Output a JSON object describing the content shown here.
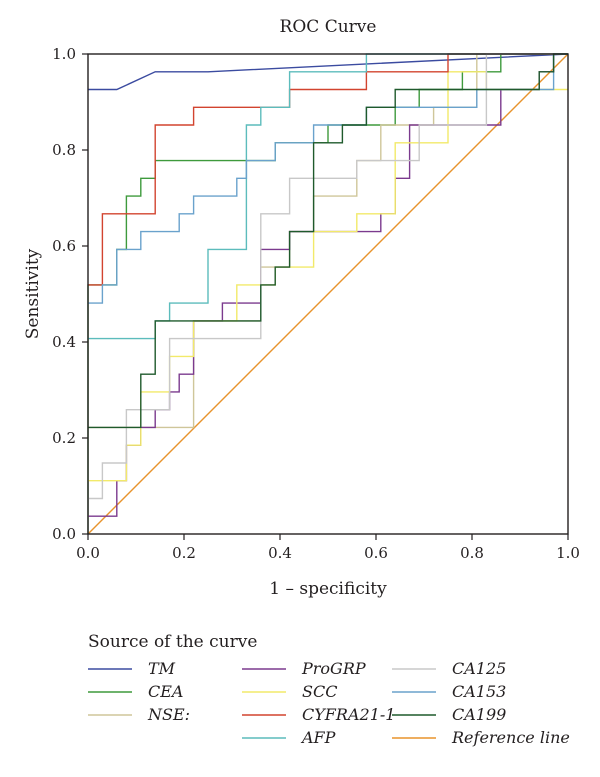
{
  "chart_data": {
    "type": "line",
    "title": "ROC Curve",
    "xlabel": "1 – specificity",
    "ylabel": "Sensitivity",
    "xlim": [
      0,
      1
    ],
    "ylim": [
      0,
      1
    ],
    "xticks": [
      "0.0",
      "0.2",
      "0.4",
      "0.6",
      "0.8",
      "1.0"
    ],
    "yticks": [
      "0.0",
      "0.2",
      "0.4",
      "0.6",
      "0.8",
      "1.0"
    ],
    "grid": false,
    "legend_title": "Source of the curve",
    "legend_position": "bottom",
    "series": [
      {
        "name": "TM",
        "color": "#3b4ba0",
        "x": [
          0,
          0.06,
          0.14,
          0.25,
          1.0
        ],
        "y": [
          0.926,
          0.926,
          0.963,
          0.963,
          1.0
        ]
      },
      {
        "name": "CEA",
        "color": "#3e9a3c",
        "x": [
          0,
          0,
          0.06,
          0.06,
          0.08,
          0.08,
          0.11,
          0.11,
          0.14,
          0.14,
          0.39,
          0.39,
          0.5,
          0.5,
          0.64,
          0.64,
          0.69,
          0.69,
          0.78,
          0.78,
          0.86,
          0.86,
          1.0
        ],
        "y": [
          0,
          0.519,
          0.519,
          0.593,
          0.593,
          0.704,
          0.704,
          0.741,
          0.741,
          0.778,
          0.778,
          0.815,
          0.815,
          0.852,
          0.852,
          0.889,
          0.889,
          0.926,
          0.926,
          0.963,
          0.963,
          1.0,
          1.0
        ]
      },
      {
        "name": "NSE:",
        "color": "#cfc69a",
        "x": [
          0,
          0.22,
          0.22,
          0.36,
          0.36,
          0.42,
          0.42,
          0.47,
          0.47,
          0.56,
          0.56,
          0.61,
          0.61,
          0.72,
          0.72,
          0.81,
          0.81,
          1.0
        ],
        "y": [
          0.222,
          0.222,
          0.444,
          0.444,
          0.556,
          0.556,
          0.63,
          0.63,
          0.704,
          0.704,
          0.778,
          0.778,
          0.852,
          0.852,
          0.889,
          0.889,
          1.0,
          1.0
        ]
      },
      {
        "name": "ProGRP",
        "color": "#7b3a8e",
        "x": [
          0,
          0.06,
          0.06,
          0.08,
          0.08,
          0.11,
          0.11,
          0.14,
          0.14,
          0.17,
          0.17,
          0.19,
          0.19,
          0.22,
          0.22,
          0.28,
          0.28,
          0.36,
          0.36,
          0.42,
          0.42,
          0.47,
          0.47,
          0.58,
          0.58,
          0.61,
          0.61,
          0.64,
          0.64,
          0.67,
          0.67,
          0.86,
          0.86,
          0.94,
          0.94,
          0.97,
          0.97,
          1.0
        ],
        "y": [
          0.037,
          0.037,
          0.111,
          0.111,
          0.185,
          0.185,
          0.222,
          0.222,
          0.259,
          0.259,
          0.296,
          0.296,
          0.333,
          0.333,
          0.444,
          0.444,
          0.481,
          0.481,
          0.593,
          0.593,
          0.63,
          0.63,
          0.63,
          0.63,
          0.63,
          0.63,
          0.667,
          0.667,
          0.741,
          0.741,
          0.852,
          0.852,
          0.926,
          0.926,
          0.963,
          0.963,
          1.0,
          1.0
        ]
      },
      {
        "name": "SCC",
        "color": "#f2ea6a",
        "x": [
          0,
          0.08,
          0.08,
          0.11,
          0.11,
          0.17,
          0.17,
          0.22,
          0.22,
          0.31,
          0.31,
          0.39,
          0.39,
          0.47,
          0.47,
          0.56,
          0.56,
          0.64,
          0.64,
          0.75,
          0.75,
          0.83,
          0.83,
          1.0
        ],
        "y": [
          0.111,
          0.111,
          0.185,
          0.185,
          0.296,
          0.296,
          0.37,
          0.37,
          0.444,
          0.444,
          0.519,
          0.519,
          0.556,
          0.556,
          0.63,
          0.63,
          0.667,
          0.667,
          0.815,
          0.815,
          0.963,
          0.963,
          0.926,
          0.926
        ]
      },
      {
        "name": "CYFRA21-1",
        "color": "#d2442f",
        "x": [
          0,
          0.03,
          0.03,
          0.14,
          0.14,
          0.22,
          0.22,
          0.33,
          0.33,
          0.42,
          0.42,
          0.58,
          0.58,
          0.75,
          0.75,
          1.0
        ],
        "y": [
          0.519,
          0.519,
          0.667,
          0.667,
          0.852,
          0.852,
          0.889,
          0.889,
          0.889,
          0.889,
          0.926,
          0.926,
          0.963,
          0.963,
          1.0,
          1.0
        ]
      },
      {
        "name": "AFP",
        "color": "#5cbcbc",
        "x": [
          0,
          0.14,
          0.14,
          0.17,
          0.17,
          0.25,
          0.25,
          0.28,
          0.28,
          0.33,
          0.33,
          0.36,
          0.36,
          0.42,
          0.42,
          0.58,
          0.58,
          0.61,
          0.61,
          1.0
        ],
        "y": [
          0.407,
          0.407,
          0.444,
          0.444,
          0.481,
          0.481,
          0.593,
          0.593,
          0.593,
          0.593,
          0.852,
          0.852,
          0.889,
          0.889,
          0.963,
          0.963,
          1.0,
          1.0,
          1.0,
          1.0
        ]
      },
      {
        "name": "CA125",
        "color": "#c8c8c8",
        "x": [
          0,
          0,
          0.03,
          0.03,
          0.08,
          0.08,
          0.17,
          0.17,
          0.36,
          0.36,
          0.42,
          0.42,
          0.56,
          0.56,
          0.69,
          0.69,
          0.83,
          0.83,
          1.0
        ],
        "y": [
          0,
          0.074,
          0.074,
          0.148,
          0.148,
          0.259,
          0.259,
          0.407,
          0.407,
          0.667,
          0.667,
          0.741,
          0.741,
          0.778,
          0.778,
          0.852,
          0.852,
          1.0,
          1.0
        ]
      },
      {
        "name": "CA153",
        "color": "#6aa2cc",
        "x": [
          0,
          0.03,
          0.03,
          0.06,
          0.06,
          0.08,
          0.08,
          0.11,
          0.11,
          0.14,
          0.14,
          0.19,
          0.19,
          0.22,
          0.22,
          0.31,
          0.31,
          0.33,
          0.33,
          0.39,
          0.39,
          0.47,
          0.47,
          0.58,
          0.58,
          0.81,
          0.81,
          0.97,
          0.97,
          1.0
        ],
        "y": [
          0.481,
          0.481,
          0.519,
          0.519,
          0.593,
          0.593,
          0.593,
          0.593,
          0.63,
          0.63,
          0.63,
          0.63,
          0.667,
          0.667,
          0.704,
          0.704,
          0.741,
          0.741,
          0.778,
          0.778,
          0.815,
          0.815,
          0.852,
          0.852,
          0.889,
          0.889,
          0.926,
          0.926,
          1.0,
          1.0
        ]
      },
      {
        "name": "CA199",
        "color": "#1f5a2c",
        "x": [
          0,
          0.11,
          0.11,
          0.14,
          0.14,
          0.36,
          0.36,
          0.39,
          0.39,
          0.42,
          0.42,
          0.47,
          0.47,
          0.53,
          0.53,
          0.58,
          0.58,
          0.64,
          0.64,
          0.94,
          0.94,
          0.97,
          0.97,
          1.0
        ],
        "y": [
          0.222,
          0.222,
          0.333,
          0.333,
          0.444,
          0.444,
          0.519,
          0.519,
          0.556,
          0.556,
          0.63,
          0.63,
          0.815,
          0.815,
          0.852,
          0.852,
          0.889,
          0.889,
          0.926,
          0.926,
          0.963,
          0.963,
          1.0,
          1.0
        ]
      },
      {
        "name": "Reference line",
        "color": "#e8932c",
        "x": [
          0,
          1
        ],
        "y": [
          0,
          1
        ]
      }
    ]
  }
}
